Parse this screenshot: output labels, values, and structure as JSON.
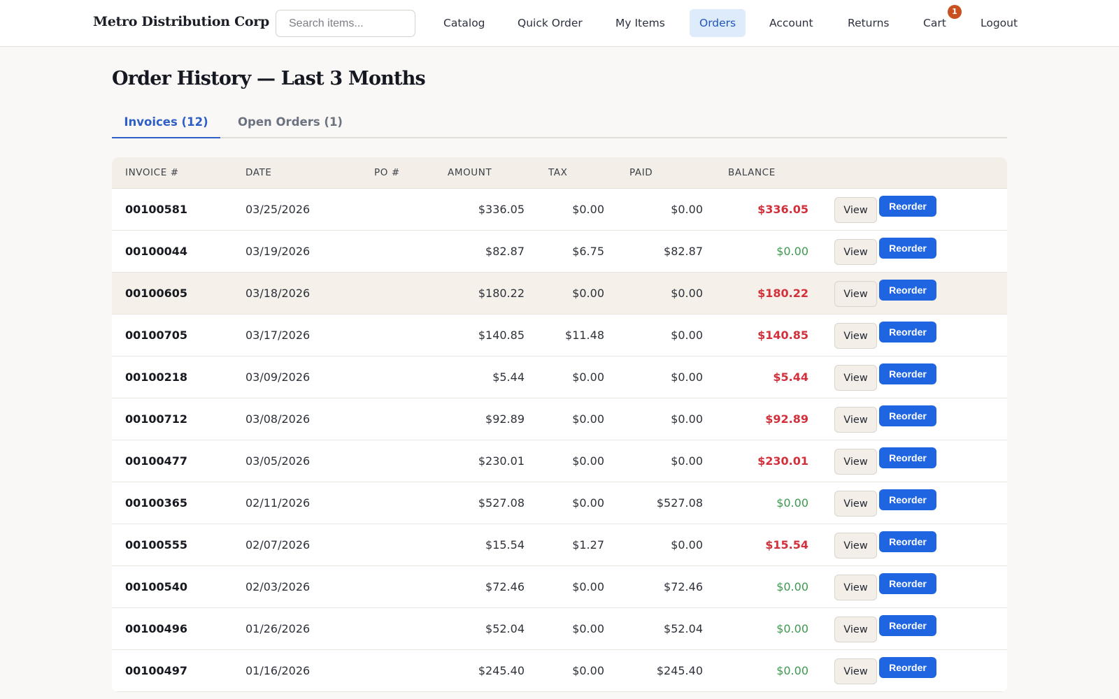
{
  "header": {
    "brand": "Metro Distribution Corp",
    "search_placeholder": "Search items...",
    "nav": [
      {
        "label": "Catalog"
      },
      {
        "label": "Quick Order"
      },
      {
        "label": "My Items"
      },
      {
        "label": "Orders",
        "active": true
      },
      {
        "label": "Account"
      },
      {
        "label": "Returns"
      },
      {
        "label": "Cart"
      },
      {
        "label": "Logout"
      }
    ],
    "cart_count": "1"
  },
  "page": {
    "title": "Order History — Last 3 Months"
  },
  "tabs": [
    {
      "label": "Invoices (12)",
      "active": true
    },
    {
      "label": "Open Orders (1)",
      "active": false
    }
  ],
  "table": {
    "columns": [
      "INVOICE #",
      "DATE",
      "PO #",
      "AMOUNT",
      "TAX",
      "PAID",
      "BALANCE"
    ],
    "view_label": "View",
    "reorder_label": "Reorder",
    "rows": [
      {
        "invoice": "00100581",
        "date": "03/25/2026",
        "po": "",
        "amount": "$336.05",
        "tax": "$0.00",
        "paid": "$0.00",
        "balance": "$336.05"
      },
      {
        "invoice": "00100044",
        "date": "03/19/2026",
        "po": "",
        "amount": "$82.87",
        "tax": "$6.75",
        "paid": "$82.87",
        "balance": "$0.00"
      },
      {
        "invoice": "00100605",
        "date": "03/18/2026",
        "po": "",
        "amount": "$180.22",
        "tax": "$0.00",
        "paid": "$0.00",
        "balance": "$180.22"
      },
      {
        "invoice": "00100705",
        "date": "03/17/2026",
        "po": "",
        "amount": "$140.85",
        "tax": "$11.48",
        "paid": "$0.00",
        "balance": "$140.85"
      },
      {
        "invoice": "00100218",
        "date": "03/09/2026",
        "po": "",
        "amount": "$5.44",
        "tax": "$0.00",
        "paid": "$0.00",
        "balance": "$5.44"
      },
      {
        "invoice": "00100712",
        "date": "03/08/2026",
        "po": "",
        "amount": "$92.89",
        "tax": "$0.00",
        "paid": "$0.00",
        "balance": "$92.89"
      },
      {
        "invoice": "00100477",
        "date": "03/05/2026",
        "po": "",
        "amount": "$230.01",
        "tax": "$0.00",
        "paid": "$0.00",
        "balance": "$230.01"
      },
      {
        "invoice": "00100365",
        "date": "02/11/2026",
        "po": "",
        "amount": "$527.08",
        "tax": "$0.00",
        "paid": "$527.08",
        "balance": "$0.00"
      },
      {
        "invoice": "00100555",
        "date": "02/07/2026",
        "po": "",
        "amount": "$15.54",
        "tax": "$1.27",
        "paid": "$0.00",
        "balance": "$15.54"
      },
      {
        "invoice": "00100540",
        "date": "02/03/2026",
        "po": "",
        "amount": "$72.46",
        "tax": "$0.00",
        "paid": "$72.46",
        "balance": "$0.00"
      },
      {
        "invoice": "00100496",
        "date": "01/26/2026",
        "po": "",
        "amount": "$52.04",
        "tax": "$0.00",
        "paid": "$52.04",
        "balance": "$0.00"
      },
      {
        "invoice": "00100497",
        "date": "01/16/2026",
        "po": "",
        "amount": "$245.40",
        "tax": "$0.00",
        "paid": "$245.40",
        "balance": "$0.00"
      }
    ]
  },
  "colors": {
    "accent": "#1f64e0",
    "balance_due": "#d2303a",
    "balance_paid": "#3e9a4e",
    "badge": "#c9501f"
  }
}
